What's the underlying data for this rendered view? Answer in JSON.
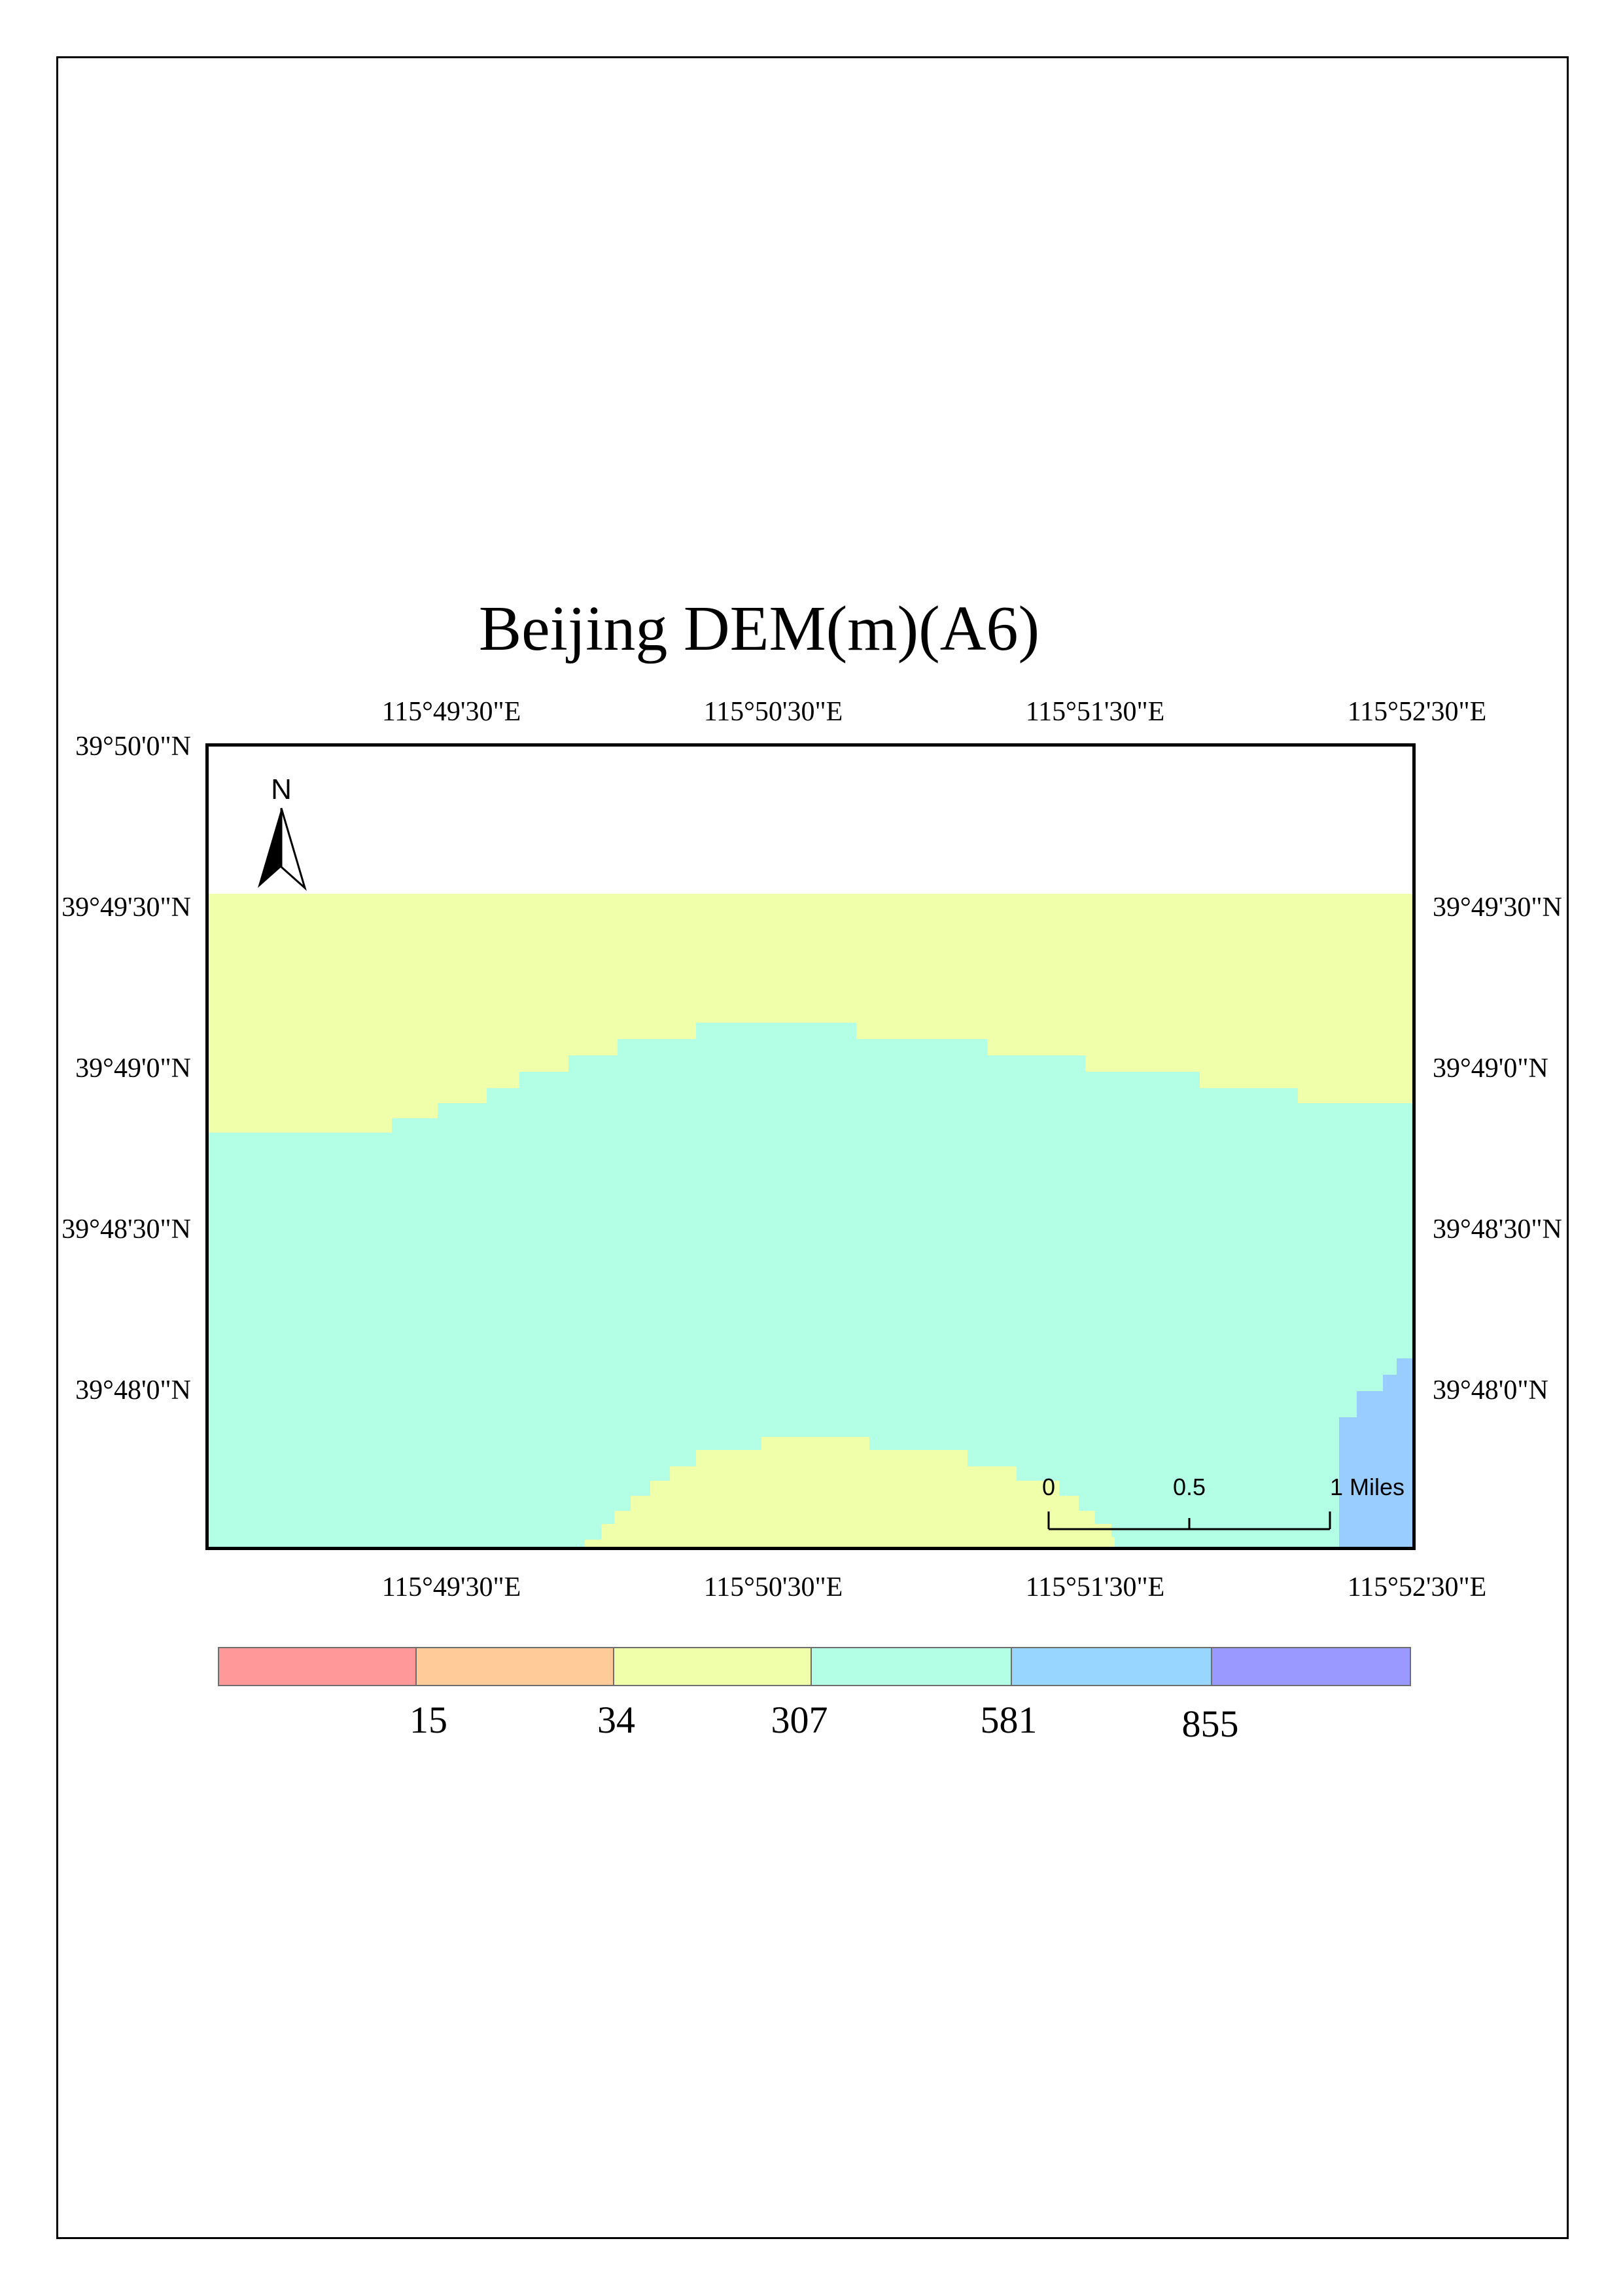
{
  "title": "Beijing DEM(m)(A6)",
  "map": {
    "top_ticks": [
      "115°49'30\"E",
      "115°50'30\"E",
      "115°51'30\"E",
      "115°52'30\"E"
    ],
    "bottom_ticks": [
      "115°49'30\"E",
      "115°50'30\"E",
      "115°51'30\"E",
      "115°52'30\"E"
    ],
    "left_ticks": [
      "39°50'0\"N",
      "39°49'30\"N",
      "39°49'0\"N",
      "39°48'30\"N",
      "39°48'0\"N"
    ],
    "right_ticks": [
      "39°49'30\"N",
      "39°49'0\"N",
      "39°48'30\"N",
      "39°48'0\"N"
    ],
    "colors": {
      "band_15_34": "#f0ffaa",
      "band_34_307": "#b2ffe6",
      "band_581_855": "#99ccff"
    }
  },
  "north_arrow": {
    "label": "N"
  },
  "scale_bar": {
    "ticks": [
      "0",
      "0.5",
      "1 Miles"
    ]
  },
  "legend": {
    "colors": [
      "#ff9999",
      "#ffcc99",
      "#f0ffaa",
      "#b2ffe6",
      "#99d6ff",
      "#9999ff"
    ],
    "labels": [
      "15",
      "34",
      "307",
      "581",
      "855"
    ]
  }
}
